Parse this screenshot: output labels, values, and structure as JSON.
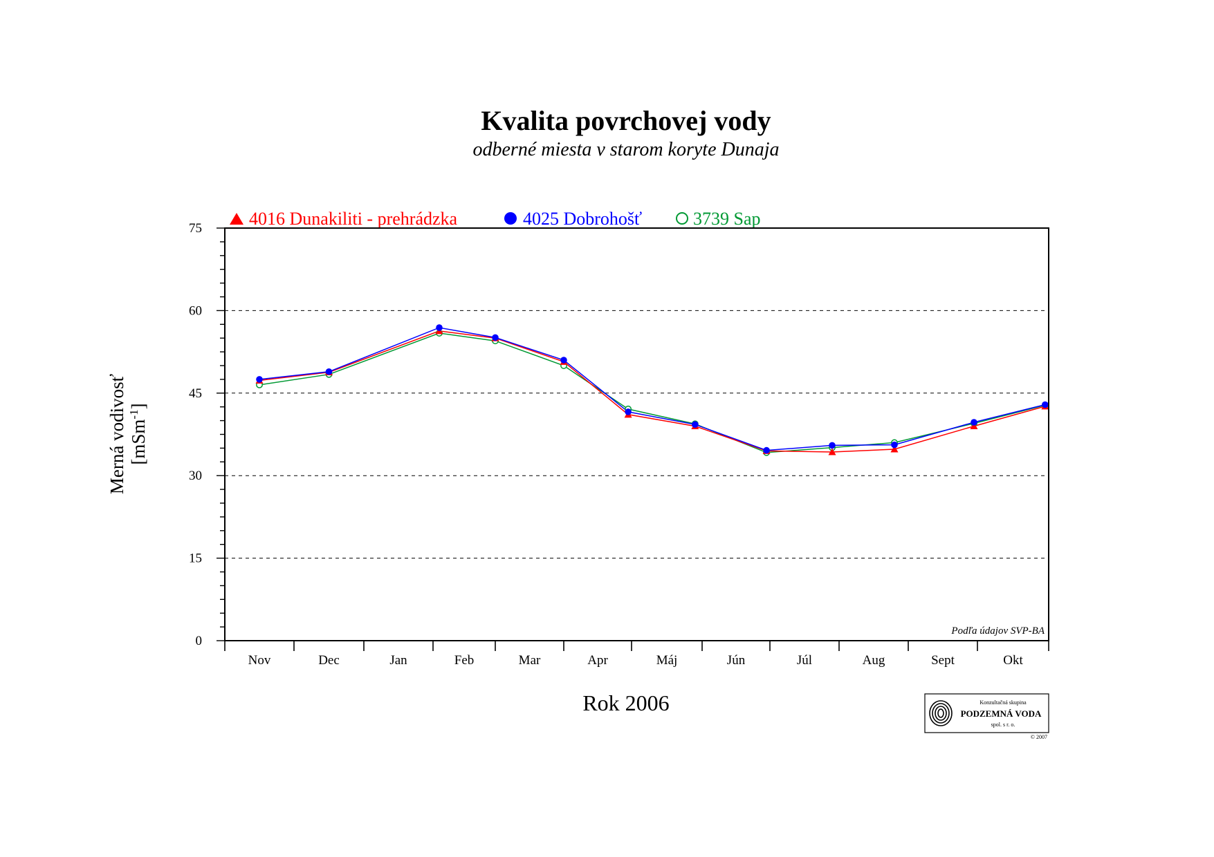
{
  "chart_data": {
    "type": "line",
    "title": "Kvalita povrchovej vody",
    "subtitle": "odberné miesta v starom koryte Dunaja",
    "xlabel": "Rok 2006",
    "ylabel_line1": "Merná vodivosť",
    "ylabel_line2": "[mSm",
    "ylabel_sup": "-1",
    "ylabel_close": "]",
    "categories": [
      "Nov",
      "Dec",
      "Jan",
      "Feb",
      "Mar",
      "Apr",
      "Máj",
      "Jún",
      "Júl",
      "Aug",
      "Sept",
      "Okt"
    ],
    "ylim": [
      0,
      75
    ],
    "yticks": [
      0,
      15,
      30,
      45,
      60,
      75
    ],
    "grid": "dashed horizontal at major ticks",
    "legend_position": "top",
    "note": "Podľa údajov SVP-BA",
    "series": [
      {
        "name": "4016 Dunakiliti - prehrádzka",
        "color": "#ff0000",
        "marker": "filled-triangle",
        "points": [
          [
            0.5,
            47.3
          ],
          [
            1.5,
            48.8
          ],
          [
            3.1,
            56.3
          ],
          [
            4.0,
            55.0
          ],
          [
            5.0,
            50.7
          ],
          [
            5.95,
            41.1
          ],
          [
            6.9,
            39.0
          ],
          [
            7.95,
            34.5
          ],
          [
            8.9,
            34.3
          ],
          [
            9.8,
            34.8
          ],
          [
            10.95,
            39.0
          ],
          [
            11.95,
            42.6
          ]
        ]
      },
      {
        "name": "4025 Dobrohošť",
        "color": "#0000ff",
        "marker": "filled-circle",
        "points": [
          [
            0.5,
            47.5
          ],
          [
            1.5,
            48.9
          ],
          [
            3.1,
            56.9
          ],
          [
            4.0,
            55.1
          ],
          [
            5.0,
            51.0
          ],
          [
            5.95,
            41.6
          ],
          [
            6.9,
            39.3
          ],
          [
            7.95,
            34.6
          ],
          [
            8.9,
            35.5
          ],
          [
            9.8,
            35.6
          ],
          [
            10.95,
            39.7
          ],
          [
            11.95,
            42.9
          ]
        ]
      },
      {
        "name": "3739 Sap",
        "color": "#009933",
        "marker": "open-circle",
        "points": [
          [
            0.5,
            46.5
          ],
          [
            1.5,
            48.4
          ],
          [
            3.1,
            55.9
          ],
          [
            4.0,
            54.5
          ],
          [
            5.0,
            50.0
          ],
          [
            5.95,
            42.1
          ],
          [
            6.9,
            39.4
          ],
          [
            7.95,
            34.2
          ],
          [
            8.9,
            35.1
          ],
          [
            9.8,
            36.0
          ],
          [
            10.95,
            39.5
          ],
          [
            11.95,
            42.8
          ]
        ]
      }
    ]
  },
  "logo": {
    "line1": "Konzultačná skupina",
    "line2": "PODZEMNÁ VODA",
    "line3": "spol. s r. o.",
    "copyright": "© 2007",
    "icon": "fingerprint-spiral-icon"
  }
}
